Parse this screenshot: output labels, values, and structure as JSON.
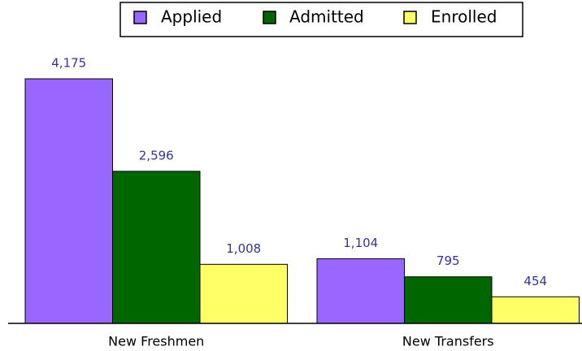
{
  "chart_data": {
    "type": "bar",
    "categories": [
      "New Freshmen",
      "New Transfers"
    ],
    "series": [
      {
        "name": "Applied",
        "color": "#9966ff",
        "values": [
          4175,
          1104
        ],
        "value_labels": [
          "4,175",
          "1,104"
        ]
      },
      {
        "name": "Admitted",
        "color": "#006600",
        "values": [
          2596,
          795
        ],
        "value_labels": [
          "2,596",
          "795"
        ]
      },
      {
        "name": "Enrolled",
        "color": "#ffff66",
        "values": [
          1008,
          454
        ],
        "value_labels": [
          "1,008",
          "454"
        ]
      }
    ],
    "legend": "top"
  }
}
